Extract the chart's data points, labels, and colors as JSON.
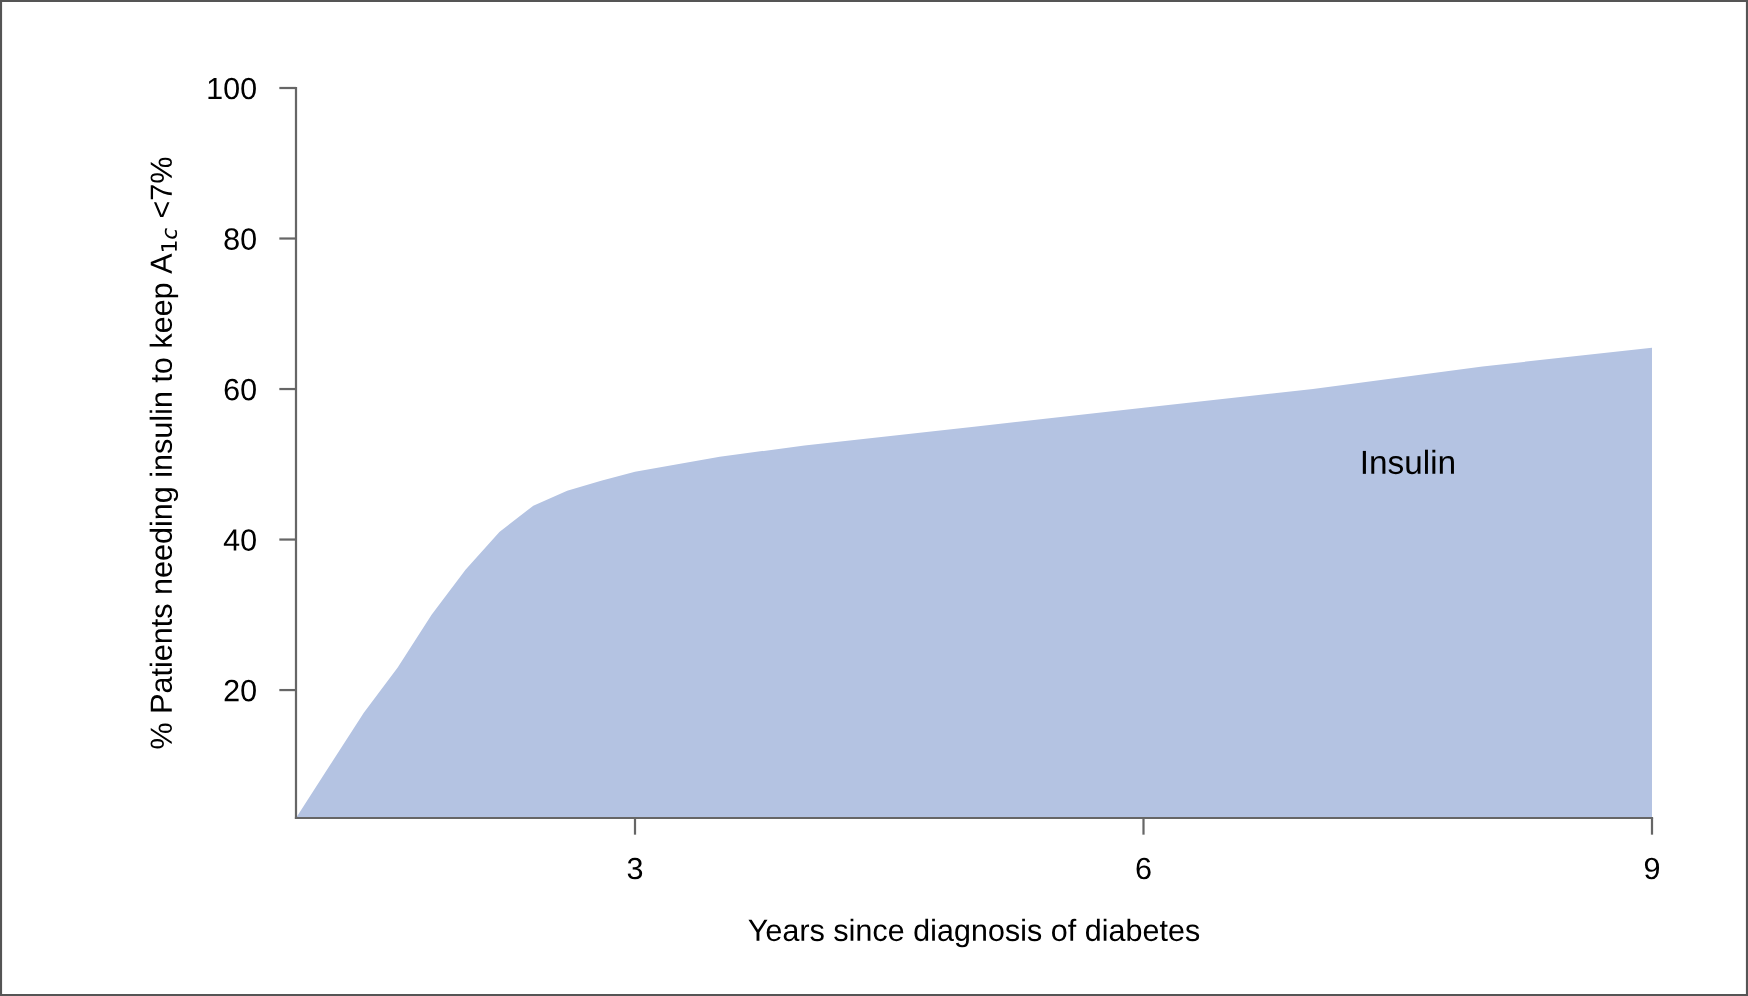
{
  "chart_data": {
    "type": "area",
    "xlabel": "Years since diagnosis of diabetes",
    "ylabel": "% Patients needing insulin to keep A$_{1c}$ <7%",
    "x": [
      1.0,
      1.2,
      1.4,
      1.6,
      1.8,
      2.0,
      2.2,
      2.4,
      2.6,
      2.8,
      3.0,
      3.5,
      4.0,
      5.0,
      6.0,
      7.0,
      8.0,
      9.0
    ],
    "series": [
      {
        "name": "Insulin",
        "color": "#b4c3e2",
        "values": [
          3,
          10,
          17,
          23,
          30,
          36,
          41,
          44.5,
          46.5,
          47.8,
          49,
          51,
          52.5,
          55,
          57.5,
          60,
          63,
          65.5
        ]
      }
    ],
    "xlim": [
      1,
      9
    ],
    "xticks": [
      3,
      6,
      9
    ],
    "ylim": [
      3,
      100
    ],
    "yticks": [
      20,
      40,
      60,
      80,
      100
    ],
    "grid": false,
    "legend": false
  }
}
